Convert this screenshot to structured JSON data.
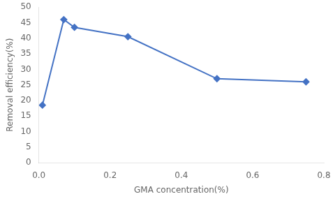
{
  "chart_data": {
    "type": "line",
    "x": [
      0.01,
      0.07,
      0.1,
      0.25,
      0.5,
      0.75
    ],
    "values": [
      18.5,
      46.0,
      43.5,
      40.5,
      27.0,
      26.0
    ],
    "color": "#4472C4",
    "marker": "diamond",
    "xlabel": "GMA concentration(%)",
    "ylabel": "Removal efficiency(%)",
    "xlim": [
      0,
      0.8
    ],
    "ylim": [
      0,
      50
    ],
    "xticks": [
      {
        "value": 0,
        "label": "0.0"
      },
      0.2,
      0.4,
      0.6,
      0.8
    ],
    "yticks": [
      0,
      5,
      10,
      15,
      20,
      25,
      30,
      35,
      40,
      45,
      50
    ],
    "grid": false
  }
}
